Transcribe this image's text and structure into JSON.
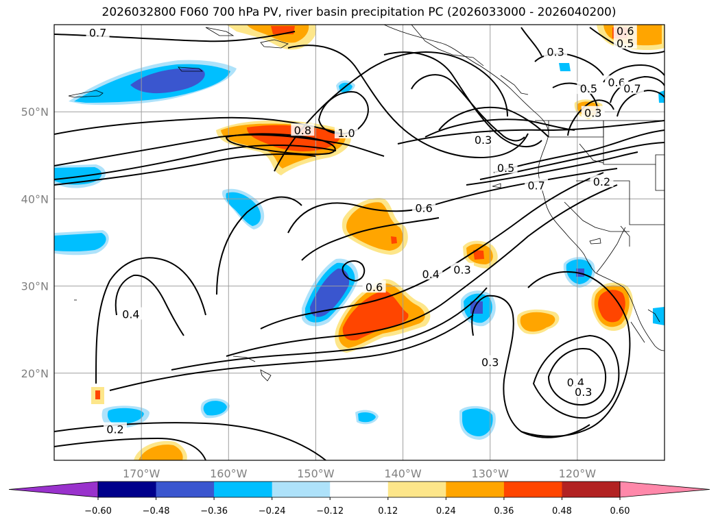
{
  "title": "2026032800 F060 700 hPa PV, river basin precipitation PC (2026033000 - 2026040200)",
  "map": {
    "lon_range": [
      -180,
      -110
    ],
    "lat_range": [
      10,
      60
    ],
    "lon_ticks": [
      {
        "value": -170,
        "label": "170°W"
      },
      {
        "value": -160,
        "label": "160°W"
      },
      {
        "value": -150,
        "label": "150°W"
      },
      {
        "value": -140,
        "label": "140°W"
      },
      {
        "value": -130,
        "label": "130°W"
      },
      {
        "value": -120,
        "label": "120°W"
      }
    ],
    "lat_ticks": [
      {
        "value": 20,
        "label": "20°N"
      },
      {
        "value": 30,
        "label": "30°N"
      },
      {
        "value": 40,
        "label": "40°N"
      },
      {
        "value": 50,
        "label": "50°N"
      }
    ],
    "grid": true,
    "contour_labels": [
      {
        "text": "0.7",
        "lon": -175,
        "lat": 59
      },
      {
        "text": "0.8",
        "lon": -151.5,
        "lat": 47.8
      },
      {
        "text": "1.0",
        "lon": -146.5,
        "lat": 47.5
      },
      {
        "text": "0.3",
        "lon": -130.8,
        "lat": 46.7
      },
      {
        "text": "0.5",
        "lon": -128.2,
        "lat": 43.5
      },
      {
        "text": "0.7",
        "lon": -124.7,
        "lat": 41.5
      },
      {
        "text": "0.6",
        "lon": -137.6,
        "lat": 38.9
      },
      {
        "text": "0.4",
        "lon": -136.8,
        "lat": 31.3
      },
      {
        "text": "0.3",
        "lon": -133.2,
        "lat": 31.8
      },
      {
        "text": "0.6",
        "lon": -143.3,
        "lat": 29.8
      },
      {
        "text": "0.4",
        "lon": -171.2,
        "lat": 26.7
      },
      {
        "text": "0.3",
        "lon": -130,
        "lat": 21.2
      },
      {
        "text": "0.4",
        "lon": -120.2,
        "lat": 18.9
      },
      {
        "text": "0.3",
        "lon": -119.3,
        "lat": 17.8
      },
      {
        "text": "0.2",
        "lon": -173,
        "lat": 13.5
      },
      {
        "text": "0.2",
        "lon": -117.2,
        "lat": 41.9
      },
      {
        "text": "0.3",
        "lon": -122.5,
        "lat": 56.8
      },
      {
        "text": "0.5",
        "lon": -114.5,
        "lat": 57.8
      },
      {
        "text": "0.6",
        "lon": -114.5,
        "lat": 59.2
      },
      {
        "text": "0.5",
        "lon": -118.7,
        "lat": 52.6
      },
      {
        "text": "0.6",
        "lon": -115.5,
        "lat": 53.3
      },
      {
        "text": "0.7",
        "lon": -113.7,
        "lat": 52.6
      },
      {
        "text": "0.3",
        "lon": -118.2,
        "lat": 49.8
      }
    ]
  },
  "colorbar": {
    "boundaries": [
      -0.6,
      -0.48,
      -0.36,
      -0.24,
      -0.12,
      0.12,
      0.24,
      0.36,
      0.48,
      0.6
    ],
    "labels": [
      "−0.60",
      "−0.48",
      "−0.36",
      "−0.24",
      "−0.12",
      "0.12",
      "0.24",
      "0.36",
      "0.48",
      "0.60"
    ],
    "colors": [
      "#9932cc",
      "#00008b",
      "#3a56cf",
      "#00bfff",
      "#aee2fa",
      "#ffffff",
      "#fde68a",
      "#ffa500",
      "#ff4500",
      "#b22222",
      "#ff88aa"
    ],
    "extend": "both"
  }
}
